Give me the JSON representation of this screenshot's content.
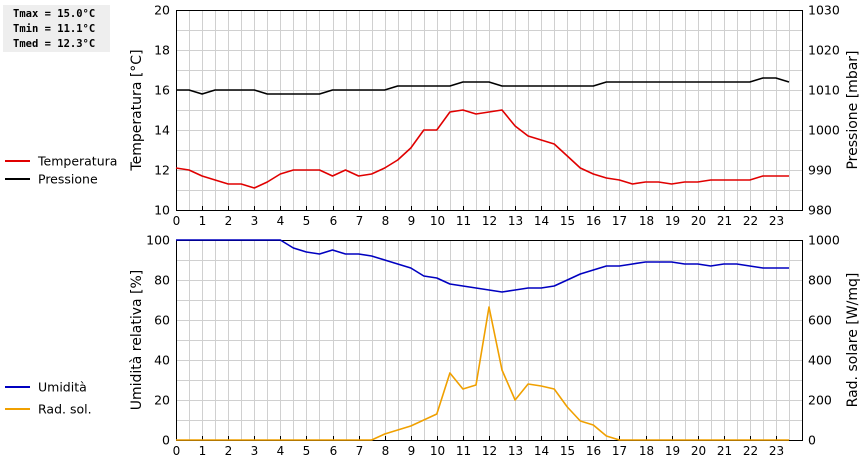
{
  "stats": {
    "tmax": "Tmax = 15.0°C",
    "tmin": "Tmin = 11.1°C",
    "tmed": "Tmed = 12.3°C"
  },
  "colors": {
    "temperatura": "#e00000",
    "pressione": "#000000",
    "umidita": "#0000c0",
    "radsol": "#f0a000",
    "grid": "#d0d0d0"
  },
  "chart_data": [
    {
      "type": "line",
      "x_ticks": [
        "0",
        "1",
        "2",
        "3",
        "4",
        "5",
        "6",
        "7",
        "8",
        "9",
        "10",
        "11",
        "12",
        "13",
        "14",
        "15",
        "16",
        "17",
        "18",
        "19",
        "20",
        "21",
        "22",
        "23"
      ],
      "xlim": [
        0,
        24
      ],
      "ylabel": "Temperatura [°C]",
      "ylim": [
        10,
        20
      ],
      "y_ticks": [
        "10",
        "12",
        "14",
        "16",
        "18",
        "20"
      ],
      "ylabel_right": "Pressione [mbar]",
      "ylim_right": [
        980,
        1030
      ],
      "y_ticks_right": [
        "980",
        "990",
        "1000",
        "1010",
        "1020",
        "1030"
      ],
      "grid": true,
      "legend_position": "left",
      "series": [
        {
          "name": "Temperatura",
          "axis": "left",
          "x": [
            0,
            0.5,
            1,
            1.5,
            2,
            2.5,
            3,
            3.5,
            4,
            4.5,
            5,
            5.5,
            6,
            6.5,
            7,
            7.5,
            8,
            8.5,
            9,
            9.5,
            10,
            10.5,
            11,
            11.5,
            12,
            12.5,
            13,
            13.5,
            14,
            14.5,
            15,
            15.5,
            16,
            16.5,
            17,
            17.5,
            18,
            18.5,
            19,
            19.5,
            20,
            20.5,
            21,
            21.5,
            22,
            22.5,
            23,
            23.5
          ],
          "values": [
            12.1,
            12.0,
            11.7,
            11.5,
            11.3,
            11.3,
            11.1,
            11.4,
            11.8,
            12.0,
            12.0,
            12.0,
            11.7,
            12.0,
            11.7,
            11.8,
            12.1,
            12.5,
            13.1,
            14.0,
            14.0,
            14.9,
            15.0,
            14.8,
            14.9,
            15.0,
            14.2,
            13.7,
            13.5,
            13.3,
            12.7,
            12.1,
            11.8,
            11.6,
            11.5,
            11.3,
            11.4,
            11.4,
            11.3,
            11.4,
            11.4,
            11.5,
            11.5,
            11.5,
            11.5,
            11.7,
            11.7,
            11.7
          ]
        },
        {
          "name": "Pressione",
          "axis": "right",
          "x": [
            0,
            0.5,
            1,
            1.5,
            2,
            2.5,
            3,
            3.5,
            4,
            4.5,
            5,
            5.5,
            6,
            6.5,
            7,
            7.5,
            8,
            8.5,
            9,
            9.5,
            10,
            10.5,
            11,
            11.5,
            12,
            12.5,
            13,
            13.5,
            14,
            14.5,
            15,
            15.5,
            16,
            16.5,
            17,
            17.5,
            18,
            18.5,
            19,
            19.5,
            20,
            20.5,
            21,
            21.5,
            22,
            22.5,
            23,
            23.5
          ],
          "values": [
            1010,
            1010,
            1009,
            1010,
            1010,
            1010,
            1010,
            1009,
            1009,
            1009,
            1009,
            1009,
            1010,
            1010,
            1010,
            1010,
            1010,
            1011,
            1011,
            1011,
            1011,
            1011,
            1012,
            1012,
            1012,
            1011,
            1011,
            1011,
            1011,
            1011,
            1011,
            1011,
            1011,
            1012,
            1012,
            1012,
            1012,
            1012,
            1012,
            1012,
            1012,
            1012,
            1012,
            1012,
            1012,
            1013,
            1013,
            1012
          ]
        }
      ]
    },
    {
      "type": "line",
      "x_ticks": [
        "0",
        "1",
        "2",
        "3",
        "4",
        "5",
        "6",
        "7",
        "8",
        "9",
        "10",
        "11",
        "12",
        "13",
        "14",
        "15",
        "16",
        "17",
        "18",
        "19",
        "20",
        "21",
        "22",
        "23"
      ],
      "xlim": [
        0,
        24
      ],
      "ylabel": "Umidità relativa [%]",
      "ylim": [
        0,
        100
      ],
      "y_ticks": [
        "0",
        "20",
        "40",
        "60",
        "80",
        "100"
      ],
      "ylabel_right": "Rad. solare [W/mq]",
      "ylim_right": [
        0,
        1000
      ],
      "y_ticks_right": [
        "0",
        "200",
        "400",
        "600",
        "800",
        "1000"
      ],
      "grid": true,
      "legend_position": "left",
      "series": [
        {
          "name": "Umidità",
          "axis": "left",
          "x": [
            0,
            0.5,
            1,
            1.5,
            2,
            2.5,
            3,
            3.5,
            4,
            4.5,
            5,
            5.5,
            6,
            6.5,
            7,
            7.5,
            8,
            8.5,
            9,
            9.5,
            10,
            10.5,
            11,
            11.5,
            12,
            12.5,
            13,
            13.5,
            14,
            14.5,
            15,
            15.5,
            16,
            16.5,
            17,
            17.5,
            18,
            18.5,
            19,
            19.5,
            20,
            20.5,
            21,
            21.5,
            22,
            22.5,
            23,
            23.5
          ],
          "values": [
            100,
            100,
            100,
            100,
            100,
            100,
            100,
            100,
            100,
            96,
            94,
            93,
            95,
            93,
            93,
            92,
            90,
            88,
            86,
            82,
            81,
            78,
            77,
            76,
            75,
            74,
            75,
            76,
            76,
            77,
            80,
            83,
            85,
            87,
            87,
            88,
            89,
            89,
            89,
            88,
            88,
            87,
            88,
            88,
            87,
            86,
            86,
            86
          ]
        },
        {
          "name": "Rad. sol.",
          "axis": "right",
          "x": [
            0,
            0.5,
            1,
            1.5,
            2,
            2.5,
            3,
            3.5,
            4,
            4.5,
            5,
            5.5,
            6,
            6.5,
            7,
            7.5,
            8,
            8.5,
            9,
            9.5,
            10,
            10.5,
            11,
            11.5,
            12,
            12.5,
            13,
            13.5,
            14,
            14.5,
            15,
            15.5,
            16,
            16.5,
            17,
            17.5,
            18,
            18.5,
            19,
            19.5,
            20,
            20.5,
            21,
            21.5,
            22,
            22.5,
            23,
            23.5
          ],
          "values": [
            0,
            0,
            0,
            0,
            0,
            0,
            0,
            0,
            0,
            0,
            0,
            0,
            0,
            0,
            0,
            0,
            30,
            50,
            70,
            100,
            130,
            335,
            255,
            275,
            665,
            350,
            200,
            280,
            270,
            255,
            165,
            95,
            75,
            20,
            0,
            0,
            0,
            0,
            0,
            0,
            0,
            0,
            0,
            0,
            0,
            0,
            0,
            0
          ]
        }
      ]
    }
  ]
}
